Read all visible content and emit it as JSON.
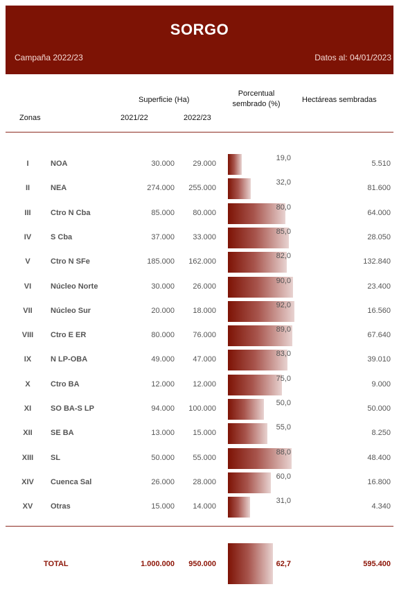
{
  "header": {
    "title": "SORGO",
    "campaign": "Campaña 2022/23",
    "date": "Datos al: 04/01/2023"
  },
  "columns": {
    "zonas": "Zonas",
    "superficie": "Superficie (Ha)",
    "y2021": "2021/22",
    "y2022": "2022/23",
    "porcentual_line1": "Porcentual",
    "porcentual_line2": "sembrado (%)",
    "hectareas": "Hectáreas sembradas"
  },
  "rows": [
    {
      "num": "I",
      "zone": "NOA",
      "ha_2021": "30.000",
      "ha_2022": "29.000",
      "pct": "19,0",
      "pct_value": 19.0,
      "sown": "5.510"
    },
    {
      "num": "II",
      "zone": "NEA",
      "ha_2021": "274.000",
      "ha_2022": "255.000",
      "pct": "32,0",
      "pct_value": 32.0,
      "sown": "81.600"
    },
    {
      "num": "III",
      "zone": "Ctro N Cba",
      "ha_2021": "85.000",
      "ha_2022": "80.000",
      "pct": "80,0",
      "pct_value": 80.0,
      "sown": "64.000"
    },
    {
      "num": "IV",
      "zone": "S Cba",
      "ha_2021": "37.000",
      "ha_2022": "33.000",
      "pct": "85,0",
      "pct_value": 85.0,
      "sown": "28.050"
    },
    {
      "num": "V",
      "zone": "Ctro N SFe",
      "ha_2021": "185.000",
      "ha_2022": "162.000",
      "pct": "82,0",
      "pct_value": 82.0,
      "sown": "132.840"
    },
    {
      "num": "VI",
      "zone": "Núcleo Norte",
      "ha_2021": "30.000",
      "ha_2022": "26.000",
      "pct": "90,0",
      "pct_value": 90.0,
      "sown": "23.400"
    },
    {
      "num": "VII",
      "zone": "Núcleo Sur",
      "ha_2021": "20.000",
      "ha_2022": "18.000",
      "pct": "92,0",
      "pct_value": 92.0,
      "sown": "16.560"
    },
    {
      "num": "VIII",
      "zone": "Ctro E ER",
      "ha_2021": "80.000",
      "ha_2022": "76.000",
      "pct": "89,0",
      "pct_value": 89.0,
      "sown": "67.640"
    },
    {
      "num": "IX",
      "zone": "N LP-OBA",
      "ha_2021": "49.000",
      "ha_2022": "47.000",
      "pct": "83,0",
      "pct_value": 83.0,
      "sown": "39.010"
    },
    {
      "num": "X",
      "zone": "Ctro BA",
      "ha_2021": "12.000",
      "ha_2022": "12.000",
      "pct": "75,0",
      "pct_value": 75.0,
      "sown": "9.000"
    },
    {
      "num": "XI",
      "zone": "SO BA-S LP",
      "ha_2021": "94.000",
      "ha_2022": "100.000",
      "pct": "50,0",
      "pct_value": 50.0,
      "sown": "50.000"
    },
    {
      "num": "XII",
      "zone": "SE BA",
      "ha_2021": "13.000",
      "ha_2022": "15.000",
      "pct": "55,0",
      "pct_value": 55.0,
      "sown": "8.250"
    },
    {
      "num": "XIII",
      "zone": "SL",
      "ha_2021": "50.000",
      "ha_2022": "55.000",
      "pct": "88,0",
      "pct_value": 88.0,
      "sown": "48.400"
    },
    {
      "num": "XIV",
      "zone": "Cuenca Sal",
      "ha_2021": "26.000",
      "ha_2022": "28.000",
      "pct": "60,0",
      "pct_value": 60.0,
      "sown": "16.800"
    },
    {
      "num": "XV",
      "zone": "Otras",
      "ha_2021": "15.000",
      "ha_2022": "14.000",
      "pct": "31,0",
      "pct_value": 31.0,
      "sown": "4.340"
    }
  ],
  "total": {
    "label": "TOTAL",
    "ha_2021": "1.000.000",
    "ha_2022": "950.000",
    "pct": "62,7",
    "pct_value": 62.7,
    "sown": "595.400"
  },
  "colors": {
    "header_bg": "#7d1305",
    "bar_dark": "#7d1305",
    "bar_light": "#e8d3d1",
    "total_text": "#8c1406"
  }
}
